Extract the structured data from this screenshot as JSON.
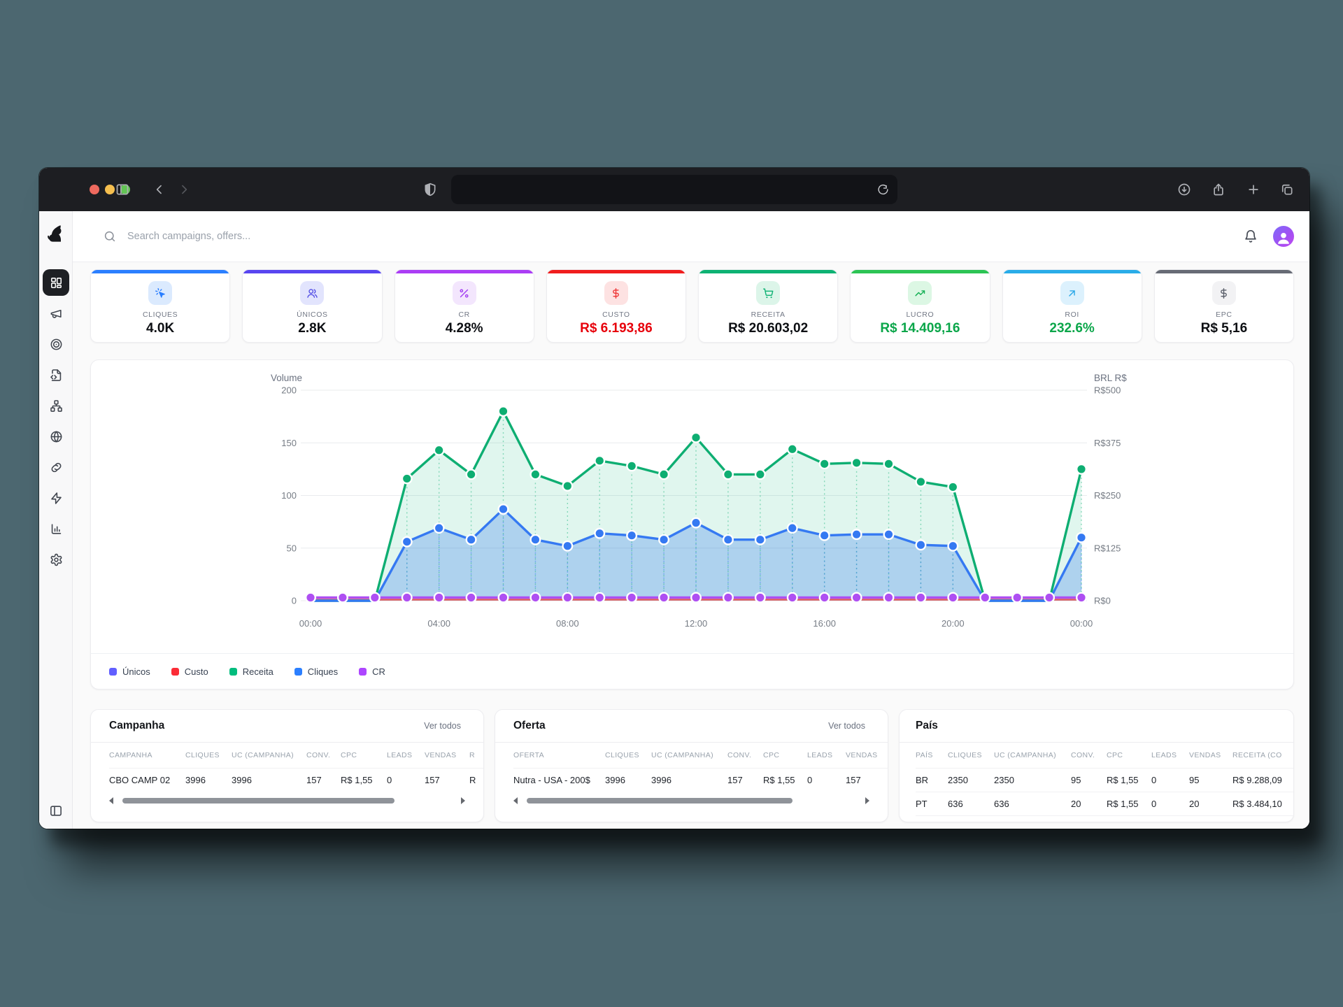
{
  "browser": {
    "traffic_lights": [
      "#ee6a5f",
      "#f5bf4f",
      "#62c554"
    ],
    "url_value": ""
  },
  "header": {
    "search_placeholder": "Search campaigns, offers..."
  },
  "sidebar": {
    "items": [
      {
        "id": "dashboard",
        "icon": "layout-dashboard",
        "active": true
      },
      {
        "id": "campaigns",
        "icon": "megaphone",
        "active": false
      },
      {
        "id": "offers",
        "icon": "target",
        "active": false
      },
      {
        "id": "landers",
        "icon": "file-code",
        "active": false
      },
      {
        "id": "flows",
        "icon": "network",
        "active": false
      },
      {
        "id": "domains",
        "icon": "globe",
        "active": false
      },
      {
        "id": "links",
        "icon": "link",
        "active": false
      },
      {
        "id": "integrations",
        "icon": "zap",
        "active": false
      },
      {
        "id": "reports",
        "icon": "bar-chart",
        "active": false
      },
      {
        "id": "settings",
        "icon": "settings",
        "active": false
      }
    ]
  },
  "kpis": [
    {
      "label": "CLIQUES",
      "value": "4.0K",
      "accent": "#2b7fff",
      "chip_bg": "#dbeafe",
      "icon": "cursor-click",
      "icon_color": "#2b7fff",
      "value_color": "#0d0f13"
    },
    {
      "label": "ÚNICOS",
      "value": "2.8K",
      "accent": "#5845f0",
      "chip_bg": "#e2e4fd",
      "icon": "users",
      "icon_color": "#5550e6",
      "value_color": "#0d0f13"
    },
    {
      "label": "CR",
      "value": "4.28%",
      "accent": "#ab3df5",
      "chip_bg": "#f3e6fd",
      "icon": "percent",
      "icon_color": "#a33ff2",
      "value_color": "#0d0f13"
    },
    {
      "label": "CUSTO",
      "value": "R$ 6.193,86",
      "accent": "#f01d1d",
      "chip_bg": "#fde2e2",
      "icon": "dollar",
      "icon_color": "#ee3636",
      "value_color": "#e7000b"
    },
    {
      "label": "RECEITA",
      "value": "R$ 20.603,02",
      "accent": "#0db273",
      "chip_bg": "#dcf5e9",
      "icon": "cart",
      "icon_color": "#0db273",
      "value_color": "#0d0f13"
    },
    {
      "label": "LUCRO",
      "value": "R$ 14.409,16",
      "accent": "#2cc454",
      "chip_bg": "#dcf7e4",
      "icon": "trending-up",
      "icon_color": "#17b156",
      "value_color": "#0ba64a"
    },
    {
      "label": "ROI",
      "value": "232.6%",
      "accent": "#29ace8",
      "chip_bg": "#dcf1fd",
      "icon": "arrow-up-right",
      "icon_color": "#29a8e8",
      "value_color": "#0ba64a"
    },
    {
      "label": "EPC",
      "value": "R$ 5,16",
      "accent": "#676b75",
      "chip_bg": "#f2f2f4",
      "icon": "dollar",
      "icon_color": "#5a5f6a",
      "value_color": "#0d0f13"
    }
  ],
  "chart_data": {
    "type": "area",
    "x_hours": [
      0,
      1,
      2,
      3,
      4,
      5,
      6,
      7,
      8,
      9,
      10,
      11,
      12,
      13,
      14,
      15,
      16,
      17,
      18,
      19,
      20,
      21,
      22,
      23,
      24
    ],
    "x_tick_labels": [
      "00:00",
      "04:00",
      "08:00",
      "12:00",
      "16:00",
      "20:00",
      "00:00"
    ],
    "left_axis": {
      "title": "Volume",
      "ticks": [
        0,
        50,
        100,
        150,
        200
      ],
      "range": [
        0,
        200
      ]
    },
    "right_axis": {
      "title": "BRL R$",
      "ticks": [
        "R$0",
        "R$125",
        "R$250",
        "R$375",
        "R$500"
      ]
    },
    "series": [
      {
        "name": "Receita",
        "color": "#0eae72",
        "fill": "rgba(16,183,127,0.13)",
        "values": [
          0,
          0,
          0,
          116,
          143,
          120,
          180,
          120,
          109,
          133,
          128,
          120,
          155,
          120,
          120,
          144,
          130,
          131,
          130,
          113,
          108,
          0,
          0,
          0,
          125
        ]
      },
      {
        "name": "Cliques",
        "color": "#3579f2",
        "fill": "rgba(59,125,240,0.30)",
        "values": [
          0,
          0,
          0,
          56,
          69,
          58,
          87,
          58,
          52,
          64,
          62,
          58,
          74,
          58,
          58,
          69,
          62,
          63,
          63,
          53,
          52,
          0,
          0,
          0,
          60
        ]
      },
      {
        "name": "CR",
        "color": "#ae4ff2",
        "fill": null,
        "values": [
          3,
          3,
          3,
          3,
          3,
          3,
          3,
          3,
          3,
          3,
          3,
          3,
          3,
          3,
          3,
          3,
          3,
          3,
          3,
          3,
          3,
          3,
          3,
          3,
          3
        ]
      },
      {
        "name": "Custo",
        "color": "#e45b5b",
        "fill": null,
        "values": [
          1,
          1,
          1,
          1,
          1,
          1,
          1,
          1,
          1,
          1,
          1,
          1,
          1,
          1,
          1,
          1,
          1,
          1,
          1,
          1,
          1,
          1,
          1,
          1,
          1
        ]
      }
    ],
    "legend": [
      {
        "label": "Únicos",
        "color": "#615fff"
      },
      {
        "label": "Custo",
        "color": "#fb2c36"
      },
      {
        "label": "Receita",
        "color": "#00bc7d"
      },
      {
        "label": "Cliques",
        "color": "#2b7fff"
      },
      {
        "label": "CR",
        "color": "#ad46ff"
      }
    ]
  },
  "tables": [
    {
      "title": "Campanha",
      "link": "Ver todos",
      "columns": [
        "CAMPANHA",
        "CLIQUES",
        "UC (CAMPANHA)",
        "CONV.",
        "CPC",
        "LEADS",
        "VENDAS",
        "R"
      ],
      "rows": [
        [
          "CBO CAMP 02",
          "3996",
          "3996",
          "157",
          "R$ 1,55",
          "0",
          "157",
          "R"
        ]
      ],
      "scrollbar": true
    },
    {
      "title": "Oferta",
      "link": "Ver todos",
      "columns": [
        "OFERTA",
        "CLIQUES",
        "UC (CAMPANHA)",
        "CONV.",
        "CPC",
        "LEADS",
        "VENDAS"
      ],
      "rows": [
        [
          "Nutra - USA - 200$",
          "3996",
          "3996",
          "157",
          "R$ 1,55",
          "0",
          "157"
        ]
      ],
      "scrollbar": true
    },
    {
      "title": "País",
      "link": null,
      "columns": [
        "PAÍS",
        "CLIQUES",
        "UC (CAMPANHA)",
        "CONV.",
        "CPC",
        "LEADS",
        "VENDAS",
        "RECEITA (CO"
      ],
      "rows": [
        [
          "BR",
          "2350",
          "2350",
          "95",
          "R$ 1,55",
          "0",
          "95",
          "R$ 9.288,09"
        ],
        [
          "PT",
          "636",
          "636",
          "20",
          "R$ 1,55",
          "0",
          "20",
          "R$ 3.484,10"
        ]
      ],
      "scrollbar": false
    }
  ]
}
